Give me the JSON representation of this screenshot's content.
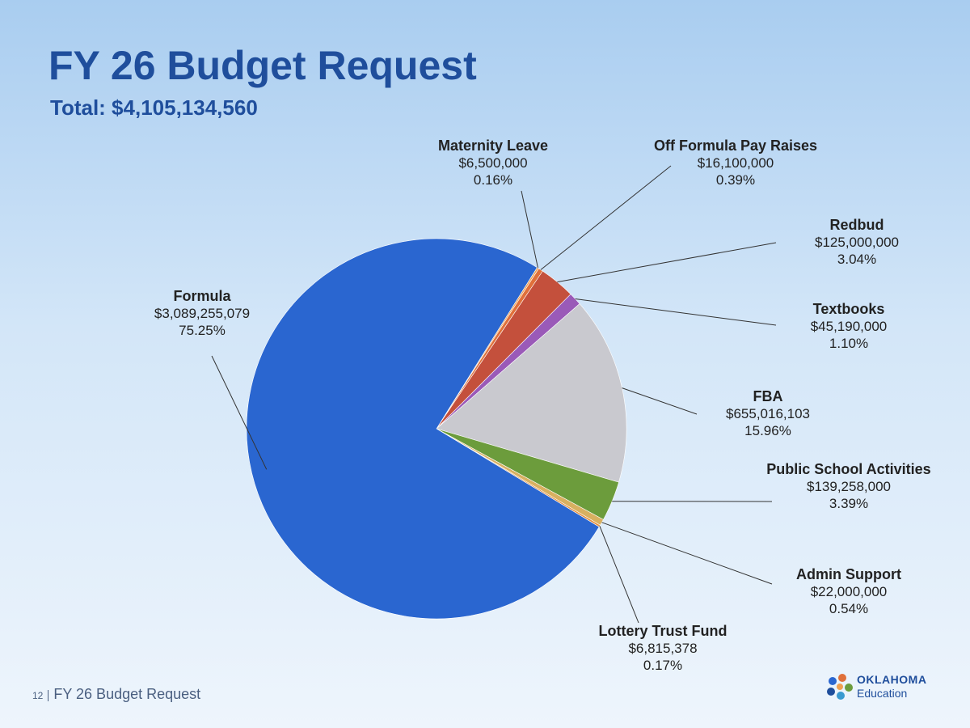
{
  "chart_data": {
    "type": "pie",
    "title": "FY 26 Budget Request",
    "subtitle": "Total: $4,105,134,560",
    "categories": [
      "Maternity Leave",
      "Off Formula Pay Raises",
      "Redbud",
      "Textbooks",
      "FBA",
      "Public School Activities",
      "Admin Support",
      "Lottery Trust Fund",
      "Formula"
    ],
    "values": [
      6500000,
      16100000,
      125000000,
      45190000,
      655016103,
      139258000,
      22000000,
      6815378,
      3089255079
    ],
    "value_labels": [
      "$6,500,000",
      "$16,100,000",
      "$125,000,000",
      "$45,190,000",
      "$655,016,103",
      "$139,258,000",
      "$22,000,000",
      "$6,815,378",
      "$3,089,255,079"
    ],
    "share_labels": [
      "0.16%",
      "0.39%",
      "3.04%",
      "1.10%",
      "15.96%",
      "3.39%",
      "0.54%",
      "0.17%",
      "75.25%"
    ],
    "colors": [
      "#f0a050",
      "#e0703a",
      "#c4503c",
      "#9a5ab8",
      "#c9c9cf",
      "#6c9c3c",
      "#d8b060",
      "#e39040",
      "#2a66d0"
    ]
  },
  "footer": {
    "page": "12",
    "text": "FY 26 Budget Request"
  },
  "logo": {
    "line1": "OKLAHOMA",
    "line2": "Education"
  }
}
